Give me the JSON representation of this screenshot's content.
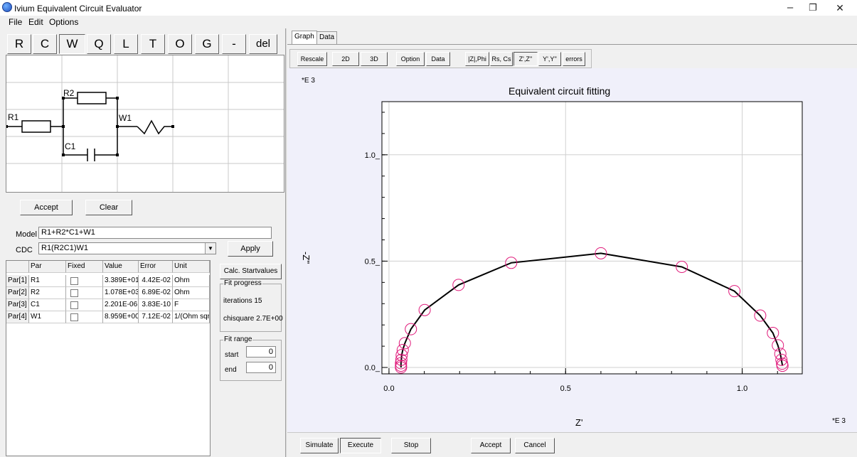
{
  "window": {
    "title": "Ivium Equivalent Circuit Evaluator",
    "minimize": "–",
    "maximize": "❐",
    "close": "✕"
  },
  "menu": [
    "File",
    "Edit",
    "Options"
  ],
  "elements": [
    "R",
    "C",
    "W",
    "Q",
    "L",
    "T",
    "O",
    "G",
    "-",
    "del"
  ],
  "selected_element": "W",
  "circuit": {
    "labels": {
      "r1": "R1",
      "r2": "R2",
      "c1": "C1",
      "w1": "W1"
    }
  },
  "circuit_buttons": {
    "accept": "Accept",
    "clear": "Clear"
  },
  "model": {
    "label": "Model",
    "value": "R1+R2*C1+W1"
  },
  "cdc": {
    "label": "CDC",
    "value": "R1(R2C1)W1",
    "apply": "Apply"
  },
  "table": {
    "headers": [
      "",
      "Par",
      "Fixed",
      "Value",
      "Error",
      "Unit"
    ],
    "rows": [
      {
        "id": "Par[1]",
        "par": "R1",
        "value": "3.389E+01",
        "error": "4.42E-02",
        "unit": "Ohm"
      },
      {
        "id": "Par[2]",
        "par": "R2",
        "value": "1.078E+03",
        "error": "6.89E-02",
        "unit": "Ohm"
      },
      {
        "id": "Par[3]",
        "par": "C1",
        "value": "2.201E-06",
        "error": "3.83E-10",
        "unit": "F"
      },
      {
        "id": "Par[4]",
        "par": "W1",
        "value": "8.959E+00",
        "error": "7.12E-02",
        "unit": "1/(Ohm sqr"
      }
    ]
  },
  "fit": {
    "calc_startvalues": "Calc. Startvalues",
    "progress_label": "Fit progress",
    "iterations": "iterations 15",
    "chisquare": "chisquare 2.7E+00",
    "range_label": "Fit range",
    "start_label": "start",
    "start_value": "0",
    "end_label": "end",
    "end_value": "0"
  },
  "tabs": [
    "Graph",
    "Data"
  ],
  "graph_toolbar": [
    "Rescale",
    "2D",
    "3D",
    "Option",
    "Data",
    "|Z|,Phi",
    "Rs, Cs",
    "Z',Z''",
    "Y',Y''",
    "errors"
  ],
  "graph_toolbar_pressed": "Z',Z''",
  "bottom_buttons": [
    "Simulate",
    "Execute",
    "Stop",
    "Accept",
    "Cancel"
  ],
  "bottom_pressed": "Execute",
  "chart_data": {
    "type": "scatter",
    "title": "Equivalent circuit fitting",
    "xlabel": "Z'",
    "ylabel": "-Z''",
    "x_multiplier": "*E 3",
    "y_multiplier": "*E 3",
    "xlim": [
      -0.02,
      1.17
    ],
    "ylim": [
      -0.03,
      1.25
    ],
    "xticks": [
      0.0,
      0.5,
      1.0
    ],
    "xtick_labels": [
      "0.0",
      "0.5",
      "1.0"
    ],
    "yticks": [
      0.0,
      0.5,
      1.0
    ],
    "ytick_labels": [
      "0.0_",
      "0.5_",
      "1.0_"
    ],
    "grid": true,
    "series": [
      {
        "marker": "circle",
        "color": "#e0197a",
        "line_color": "#000000",
        "x": [
          0.034,
          0.034,
          0.034,
          0.035,
          0.036,
          0.039,
          0.045,
          0.062,
          0.101,
          0.197,
          0.346,
          0.6,
          0.829,
          0.978,
          1.051,
          1.087,
          1.101,
          1.108,
          1.111,
          1.113,
          1.114
        ],
        "y": [
          0.0,
          0.008,
          0.02,
          0.036,
          0.058,
          0.082,
          0.114,
          0.18,
          0.27,
          0.388,
          0.492,
          0.537,
          0.473,
          0.359,
          0.244,
          0.162,
          0.104,
          0.064,
          0.036,
          0.018,
          0.008
        ]
      }
    ]
  }
}
